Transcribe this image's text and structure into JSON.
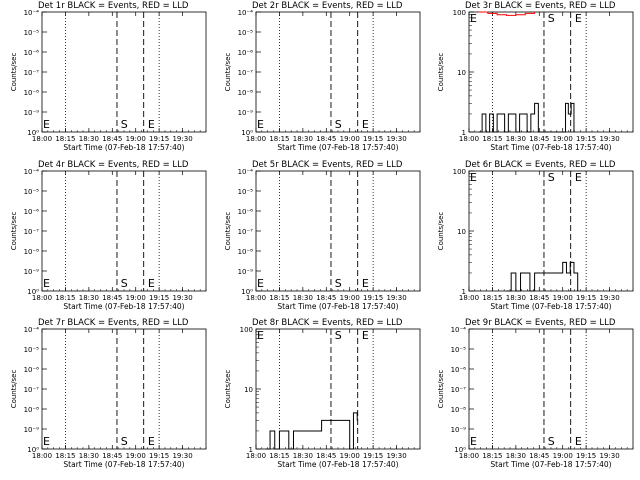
{
  "panel_layout": "3x3 grid",
  "axis_common": {
    "x_ticks": [
      "18:00",
      "18:15",
      "18:30",
      "18:45",
      "19:00",
      "19:15",
      "19:30"
    ],
    "x_range_hours": [
      18.0,
      19.75
    ],
    "xlabel": "Start Time (07-Feb-18 17:57:40)",
    "ylabel": "Counts/sec",
    "dotted_lines_at": [
      18.25,
      19.25
    ],
    "dashed_lines_at": [
      18.8,
      19.085
    ],
    "marker_S_at": 18.84,
    "marker_E_at": 19.13
  },
  "colors": {
    "events": "#000000",
    "lld": "#ff0000"
  },
  "chart_data": [
    {
      "id": "det1r",
      "type": "line",
      "title": "Det 1r BLACK = Events, RED = LLD",
      "ylim_kind": "exp-small",
      "y_ticks": [
        "10⁻⁴",
        "10⁻⁵",
        "10⁻⁶",
        "10⁻⁷",
        "10⁻⁸",
        "10⁻⁹",
        "10⁰"
      ],
      "markers": [
        "E",
        "S",
        "E"
      ],
      "series": []
    },
    {
      "id": "det2r",
      "type": "line",
      "title": "Det 2r BLACK = Events, RED = LLD",
      "ylim_kind": "exp-small",
      "y_ticks": [
        "10⁻⁴",
        "10⁻⁵",
        "10⁻⁶",
        "10⁻⁷",
        "10⁻⁸",
        "10⁻⁹",
        "10⁰"
      ],
      "markers": [
        "E",
        "S",
        "E"
      ],
      "series": []
    },
    {
      "id": "det3r",
      "type": "line",
      "title": "Det 3r BLACK = Events, RED = LLD",
      "ylim_kind": "log",
      "ylim": [
        1,
        100
      ],
      "y_ticks": [
        "100",
        "10",
        "1"
      ],
      "markers": [
        "E",
        "S",
        "E"
      ],
      "series": [
        {
          "name": "Events",
          "color": "#000000",
          "x": [
            18.1,
            18.14,
            18.18,
            18.22,
            18.26,
            18.3,
            18.34,
            18.38,
            18.42,
            18.46,
            18.5,
            18.54,
            18.58,
            18.62,
            18.66,
            18.7,
            18.74,
            19.0,
            19.03,
            19.06,
            19.09,
            19.12
          ],
          "y": [
            1,
            2,
            1,
            2,
            1,
            2,
            2,
            1,
            2,
            2,
            1,
            2,
            2,
            1,
            2,
            3,
            1,
            1,
            3,
            2,
            3,
            1
          ]
        },
        {
          "name": "LLD",
          "color": "#ff0000",
          "x": [
            18.1,
            18.2,
            18.3,
            18.4,
            18.5,
            18.6,
            18.7
          ],
          "y": [
            100,
            95,
            90,
            88,
            90,
            95,
            100
          ]
        }
      ]
    },
    {
      "id": "det4r",
      "type": "line",
      "title": "Det 4r BLACK = Events, RED = LLD",
      "ylim_kind": "exp-small",
      "y_ticks": [
        "10⁻⁴",
        "10⁻⁵",
        "10⁻⁶",
        "10⁻⁷",
        "10⁻⁸",
        "10⁻⁹",
        "10⁰"
      ],
      "markers": [
        "E",
        "S",
        "E"
      ],
      "series": []
    },
    {
      "id": "det5r",
      "type": "line",
      "title": "Det 5r BLACK = Events, RED = LLD",
      "ylim_kind": "exp-small",
      "y_ticks": [
        "10⁻⁴",
        "10⁻⁵",
        "10⁻⁶",
        "10⁻⁷",
        "10⁻⁸",
        "10⁻⁹",
        "10⁰"
      ],
      "markers": [
        "E",
        "S",
        "E"
      ],
      "series": []
    },
    {
      "id": "det6r",
      "type": "line",
      "title": "Det 6r BLACK = Events, RED = LLD",
      "ylim_kind": "log",
      "ylim": [
        1,
        100
      ],
      "y_ticks": [
        "100",
        "10",
        "1"
      ],
      "markers": [
        "E",
        "S",
        "E"
      ],
      "series": [
        {
          "name": "Events",
          "color": "#000000",
          "x": [
            18.4,
            18.45,
            18.5,
            18.55,
            18.6,
            18.65,
            18.7,
            18.74,
            19.0,
            19.04,
            19.08,
            19.12,
            19.16
          ],
          "y": [
            1,
            2,
            1,
            2,
            2,
            1,
            2,
            2,
            3,
            2,
            3,
            2,
            1
          ]
        }
      ]
    },
    {
      "id": "det7r",
      "type": "line",
      "title": "Det 7r BLACK = Events, RED = LLD",
      "ylim_kind": "exp-small",
      "y_ticks": [
        "10⁻⁴",
        "10⁻⁵",
        "10⁻⁶",
        "10⁻⁷",
        "10⁻⁸",
        "10⁻⁹",
        "10⁰"
      ],
      "markers": [
        "E",
        "S",
        "E"
      ],
      "series": []
    },
    {
      "id": "det8r",
      "type": "line",
      "title": "Det 8r BLACK = Events, RED = LLD",
      "ylim_kind": "log",
      "ylim": [
        1,
        100
      ],
      "y_ticks": [
        "100",
        "10",
        "1"
      ],
      "markers": [
        "E",
        "S",
        "E"
      ],
      "series": [
        {
          "name": "Events",
          "color": "#000000",
          "x": [
            18.1,
            18.15,
            18.2,
            18.25,
            18.3,
            18.35,
            18.4,
            18.45,
            18.5,
            18.55,
            18.6,
            18.65,
            18.7,
            18.8,
            18.85,
            19.0,
            19.04,
            19.08
          ],
          "y": [
            1,
            2,
            1,
            2,
            2,
            1,
            2,
            2,
            2,
            2,
            2,
            2,
            3,
            3,
            3,
            1,
            4,
            3
          ]
        }
      ]
    },
    {
      "id": "det9r",
      "type": "line",
      "title": "Det 9r BLACK = Events, RED = LLD",
      "ylim_kind": "exp-small",
      "y_ticks": [
        "10⁻⁴",
        "10⁻⁵",
        "10⁻⁶",
        "10⁻⁷",
        "10⁻⁸",
        "10⁻⁹",
        "10⁰"
      ],
      "markers": [
        "E",
        "S",
        "E"
      ],
      "series": []
    }
  ]
}
